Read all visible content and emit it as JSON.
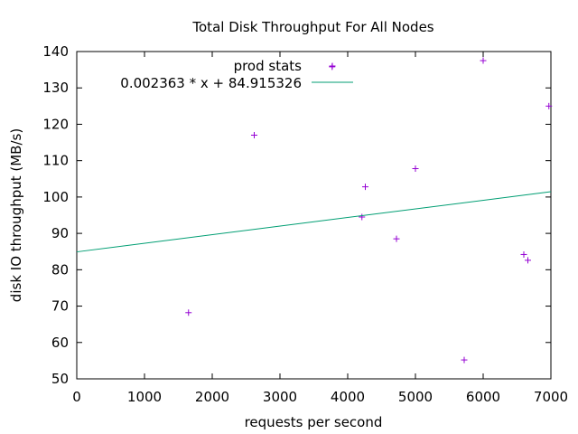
{
  "chart_data": {
    "type": "scatter",
    "title": "Total Disk Throughput For All Nodes",
    "xlabel": "requests per second",
    "ylabel": "disk IO throughput (MB/s)",
    "xlim": [
      0,
      7000
    ],
    "ylim": [
      50,
      140
    ],
    "xticks": [
      0,
      1000,
      2000,
      3000,
      4000,
      5000,
      6000,
      7000
    ],
    "yticks": [
      50,
      60,
      70,
      80,
      90,
      100,
      110,
      120,
      130,
      140
    ],
    "grid": false,
    "legend_position": "top-right",
    "series": [
      {
        "name": "prod stats",
        "kind": "points",
        "color": "#9400d3",
        "marker": "plus",
        "points": [
          {
            "x": 1650,
            "y": 68.2
          },
          {
            "x": 2620,
            "y": 117.0
          },
          {
            "x": 3770,
            "y": 135.8
          },
          {
            "x": 4210,
            "y": 94.5
          },
          {
            "x": 4260,
            "y": 102.8
          },
          {
            "x": 4720,
            "y": 88.5
          },
          {
            "x": 5000,
            "y": 107.8
          },
          {
            "x": 5720,
            "y": 55.2
          },
          {
            "x": 6000,
            "y": 137.5
          },
          {
            "x": 6600,
            "y": 84.2
          },
          {
            "x": 6660,
            "y": 82.6
          },
          {
            "x": 6970,
            "y": 125.0
          }
        ]
      },
      {
        "name": "0.002363 * x + 84.915326",
        "kind": "line",
        "color": "#009e73",
        "slope": 0.002363,
        "intercept": 84.915326
      }
    ]
  }
}
